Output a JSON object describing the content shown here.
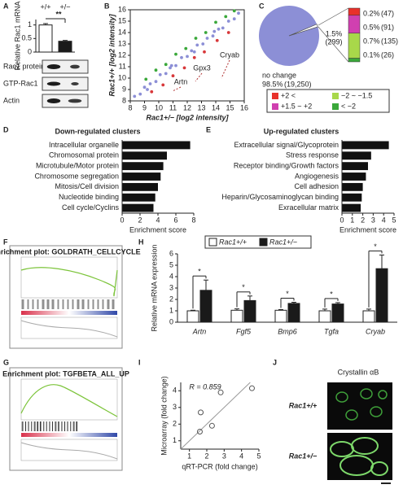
{
  "panels": [
    "A",
    "B",
    "C",
    "D",
    "E",
    "F",
    "G",
    "H",
    "I",
    "J"
  ],
  "blots": [
    "Rac1 protein",
    "GTP-Rac1",
    "Actin"
  ],
  "gsea": [
    {
      "title": "Enrichment plot: GOLDRATH_CELLCYCLE"
    },
    {
      "title": "Enrichment plot: TGFBETA_ALL_UP"
    }
  ],
  "crystallin": {
    "title": "Crystallin αB",
    "rows": [
      "Rac1+/+",
      "Rac1+/−"
    ]
  },
  "chart_data": [
    {
      "type": "bar",
      "ylabel": "Relative Rac1 mRNA",
      "categories": [
        "+/+",
        "+/−"
      ],
      "values": [
        1.0,
        0.4
      ],
      "errors": [
        0.05,
        0.03
      ],
      "colors": [
        "#ffffff",
        "#1a1a1a"
      ],
      "ylim": [
        0,
        1.2
      ],
      "yticks": [
        0,
        0.5,
        1
      ],
      "significance": "**"
    },
    {
      "type": "scatter",
      "ylabel": "Rac1+/+ [log2 intensity]",
      "xlabel": "Rac1+/− [log2 intensity]",
      "xlim": [
        8,
        16
      ],
      "ylim": [
        8,
        16
      ],
      "xticks": [
        8,
        9,
        10,
        11,
        12,
        13,
        14,
        15,
        16
      ],
      "yticks": [
        8,
        9,
        10,
        11,
        12,
        13,
        14,
        15,
        16
      ],
      "series": [
        {
          "color": "#8c8fd6",
          "x": [
            8.3,
            8.7,
            9.0,
            9.2,
            9.4,
            9.8,
            10.1,
            10.5,
            10.8,
            10.9,
            11.2,
            11.6,
            12.0,
            12.3,
            12.5,
            12.7,
            13.1,
            13.4,
            13.8,
            13.9,
            14.2,
            14.5,
            14.9,
            15.3,
            15.6
          ],
          "y": [
            8.4,
            8.6,
            9.2,
            9.0,
            9.5,
            9.7,
            10.3,
            10.4,
            10.9,
            11.1,
            11.1,
            11.8,
            11.9,
            12.4,
            12.3,
            12.9,
            13.0,
            13.5,
            13.7,
            14.1,
            14.3,
            14.4,
            15.0,
            15.2,
            15.7
          ]
        },
        {
          "color": "#3aa83a",
          "x": [
            9.1,
            9.8,
            10.5,
            11.2,
            11.9,
            12.6,
            13.3,
            14.0,
            14.7,
            15.3
          ],
          "y": [
            9.9,
            10.7,
            11.2,
            12.1,
            12.6,
            13.5,
            14.0,
            14.9,
            15.4,
            15.9
          ]
        },
        {
          "color": "#d8383a",
          "x": [
            9.5,
            10.3,
            11.0,
            11.8,
            12.5,
            13.2,
            14.1,
            14.9
          ],
          "y": [
            8.8,
            9.4,
            10.2,
            10.9,
            11.8,
            12.3,
            13.3,
            14.0
          ]
        }
      ],
      "annotations": [
        "Cryab",
        "Gpx3",
        "Artn"
      ]
    },
    {
      "type": "pie",
      "categories": [
        "no change",
        null
      ],
      "values": [
        98.5,
        1.5
      ],
      "value_labels": [
        "98.5%",
        "1.5%"
      ],
      "counts": [
        19250,
        299
      ],
      "count_labels": [
        "(19,250)",
        "(299)"
      ],
      "colors": [
        "#8c8fd6",
        "#ffffff"
      ],
      "breakdown": {
        "values": [
          0.2,
          0.5,
          0.7,
          0.1
        ],
        "value_labels": [
          "0.2%",
          "0.5%",
          "0.7%",
          "0.1%"
        ],
        "counts": [
          47,
          91,
          135,
          26
        ],
        "count_labels": [
          "(47)",
          "(91)",
          "(135)",
          "(26)"
        ],
        "colors": [
          "#e8312b",
          "#d040b0",
          "#a8d84a",
          "#3aa83a"
        ],
        "legend": [
          "+2 <",
          "+1.5 ~ +2",
          "−2 ~ −1.5",
          "< −2"
        ]
      }
    },
    {
      "type": "hbar",
      "title": "Down-regulated clusters",
      "title_color": "#3aa83a",
      "xlabel": "Enrichment score",
      "categories": [
        "Intracellular organelle",
        "Chromosomal protein",
        "Microtubule/Motor protein",
        "Chromosome segregation",
        "Mitosis/Cell division",
        "Nucleotide binding",
        "Cell cycle/Cyclins"
      ],
      "values": [
        7.6,
        5.0,
        4.6,
        4.3,
        4.0,
        3.7,
        3.5
      ],
      "color": "#111111",
      "xlim": [
        0,
        8
      ],
      "xticks": [
        0,
        2,
        4,
        6,
        8
      ]
    },
    {
      "type": "hbar",
      "title": "Up-regulated clusters",
      "title_color": "#e8312b",
      "xlabel": "Enrichment score",
      "categories": [
        "Extracellular signal/Glycoprotein",
        "Stress response",
        "Receptor binding/Growth factors",
        "Angiogenesis",
        "Cell adhesion",
        "Heparin/Glycosaminoglycan binding",
        "Exracellular matrix"
      ],
      "values": [
        4.5,
        2.8,
        2.5,
        2.3,
        2.0,
        1.9,
        1.8
      ],
      "color": "#111111",
      "xlim": [
        0,
        5
      ],
      "xticks": [
        0,
        1,
        2,
        3,
        4,
        5
      ]
    },
    {
      "type": "grouped_bar",
      "ylabel": "Relative mRNA expression",
      "categories": [
        "Artn",
        "Fgf5",
        "Bmp6",
        "Tgfa",
        "Cryab"
      ],
      "series": [
        {
          "name": "Rac1+/+",
          "color": "#ffffff",
          "values": [
            1.0,
            1.05,
            1.05,
            1.0,
            1.0
          ],
          "errors": [
            0.05,
            0.12,
            0.06,
            0.15,
            0.15
          ]
        },
        {
          "name": "Rac1+/−",
          "color": "#1a1a1a",
          "values": [
            2.8,
            1.9,
            1.65,
            1.6,
            4.7
          ],
          "errors": [
            0.9,
            0.4,
            0.1,
            0.12,
            1.2
          ]
        }
      ],
      "ylim": [
        0,
        6
      ],
      "yticks": [
        0,
        1,
        2,
        3,
        4,
        5,
        6
      ],
      "significance": [
        "*",
        "*",
        "*",
        "*",
        "*"
      ]
    },
    {
      "type": "scatter",
      "xlabel": "qRT-PCR (fold change)",
      "ylabel": "Microarray (fold change)",
      "annotation": "R = 0.859",
      "x": [
        1.6,
        1.65,
        2.3,
        2.8,
        4.6
      ],
      "y": [
        1.55,
        2.7,
        1.9,
        3.9,
        4.15
      ],
      "xlim": [
        0.5,
        5
      ],
      "ylim": [
        0.5,
        4.5
      ],
      "xticks": [
        1,
        2,
        3,
        4,
        5
      ],
      "yticks": [
        1,
        2,
        3,
        4
      ]
    }
  ]
}
